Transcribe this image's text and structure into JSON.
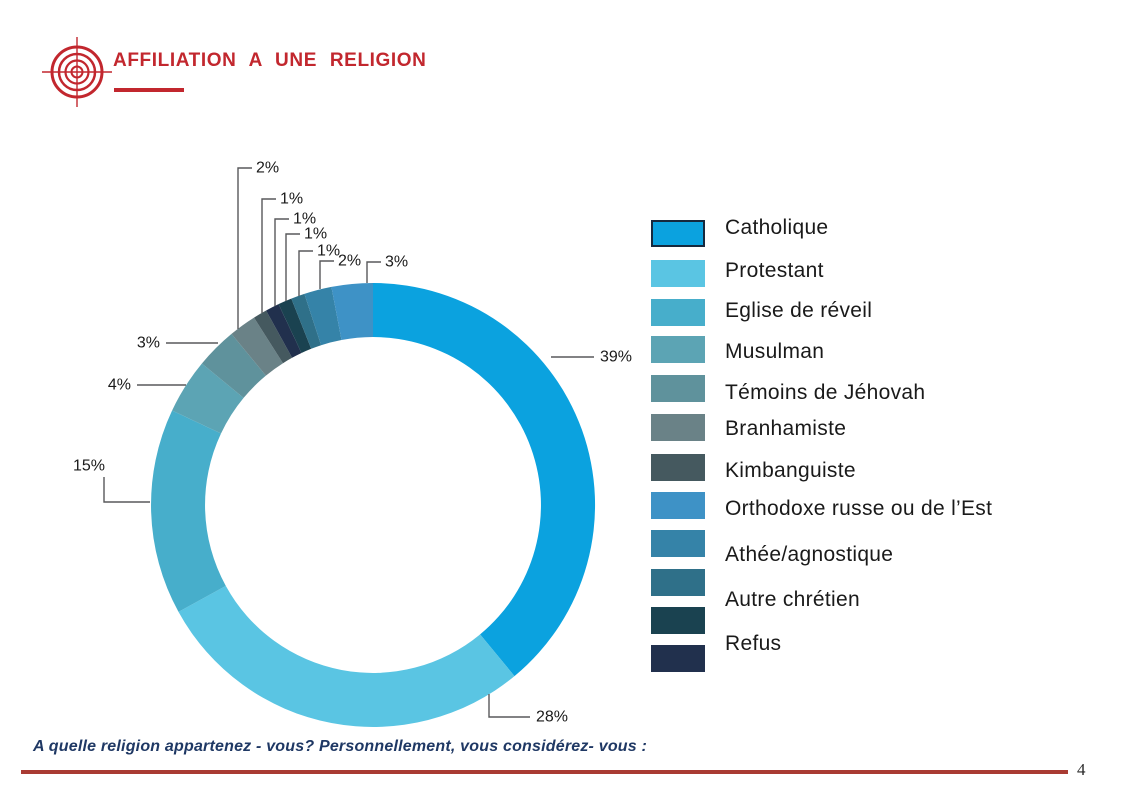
{
  "header": {
    "title": "AFFILIATION A UNE RELIGION"
  },
  "footer": {
    "question": "A quelle religion appartenez - vous? Personnellement, vous considérez- vous :",
    "page_number": "4"
  },
  "colors": {
    "accent_red": "#C2272E",
    "footer_line_red": "#A93B33",
    "question_navy": "#1F3864",
    "label_black": "#1A1A1A",
    "leader_gray": "#58595B"
  },
  "legend": {
    "items": [
      {
        "label": "Catholique",
        "color": "#0BA2DF"
      },
      {
        "label": "Protestant",
        "color": "#5AC5E3"
      },
      {
        "label": "Eglise de réveil",
        "color": "#47AECB"
      },
      {
        "label": "Musulman",
        "color": "#5CA4B4"
      },
      {
        "label": "Témoins de Jéhovah",
        "color": "#5F929C"
      },
      {
        "label": "Branhamiste",
        "color": "#6A8287"
      },
      {
        "label": "Kimbanguiste",
        "color": "#45595F"
      },
      {
        "label": "Orthodoxe russe ou de l’Est",
        "color": "#3E92C6"
      },
      {
        "label": "Athée/agnostique",
        "color": "#3583A8"
      },
      {
        "label": "Autre chrétien",
        "color": "#2F7089"
      },
      {
        "label": "Refus",
        "color": "#1A4250"
      },
      {
        "label": "",
        "color": "#21304D"
      }
    ]
  },
  "chart_data": {
    "type": "pie",
    "subtype": "donut",
    "title": "Affiliation a une religion",
    "unit": "%",
    "start_angle": "12 o'clock",
    "direction": "clockwise",
    "legend_position": "right",
    "grid": false,
    "segments": [
      {
        "name": "Catholique",
        "value": 39,
        "pct_label": "39%",
        "color": "#0BA2DF"
      },
      {
        "name": "Protestant",
        "value": 28,
        "pct_label": "28%",
        "color": "#5AC5E3"
      },
      {
        "name": "Eglise de réveil",
        "value": 15,
        "pct_label": "15%",
        "color": "#47AECB"
      },
      {
        "name": "Musulman",
        "value": 4,
        "pct_label": "4%",
        "color": "#5CA4B4"
      },
      {
        "name": "Témoins de Jéhovah",
        "value": 3,
        "pct_label": "3%",
        "color": "#5F929C"
      },
      {
        "name": "Branhamiste",
        "value": 2,
        "pct_label": "2%",
        "color": "#6A8287"
      },
      {
        "name": "Kimbanguiste",
        "value": 1,
        "pct_label": "1%",
        "color": "#45595F"
      },
      {
        "name": "",
        "value": 1,
        "pct_label": "1%",
        "color": "#21304D"
      },
      {
        "name": "Refus",
        "value": 1,
        "pct_label": "1%",
        "color": "#1A4250"
      },
      {
        "name": "Autre chrétien",
        "value": 1,
        "pct_label": "1%",
        "color": "#2F7089"
      },
      {
        "name": "Athée/agnostique",
        "value": 2,
        "pct_label": "2%",
        "color": "#3583A8"
      },
      {
        "name": "Orthodoxe russe ou de l’Est",
        "value": 3,
        "pct_label": "3%",
        "color": "#3E92C6"
      }
    ]
  }
}
